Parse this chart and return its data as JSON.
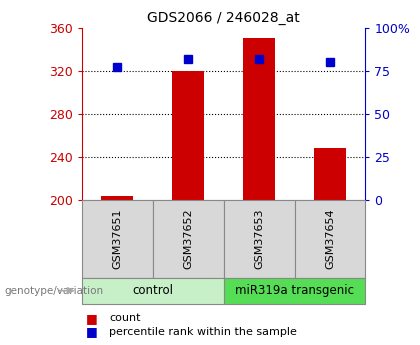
{
  "title": "GDS2066 / 246028_at",
  "samples": [
    "GSM37651",
    "GSM37652",
    "GSM37653",
    "GSM37654"
  ],
  "counts": [
    204,
    320,
    350,
    248
  ],
  "percentiles": [
    77,
    82,
    82,
    80
  ],
  "groups": [
    {
      "label": "control",
      "indices": [
        0,
        1
      ],
      "color": "#c8f0c8"
    },
    {
      "label": "miR319a transgenic",
      "indices": [
        2,
        3
      ],
      "color": "#55dd55"
    }
  ],
  "bar_color": "#cc0000",
  "pct_color": "#0000cc",
  "ylim_left": [
    200,
    360
  ],
  "ylim_right": [
    0,
    100
  ],
  "yticks_left": [
    200,
    240,
    280,
    320,
    360
  ],
  "yticks_right": [
    0,
    25,
    50,
    75,
    100
  ],
  "ytick_labels_right": [
    "0",
    "25",
    "50",
    "75",
    "100%"
  ],
  "grid_ticks": [
    240,
    280,
    320
  ],
  "sample_bg_color": "#d8d8d8",
  "bar_width": 0.45,
  "marker_size": 6,
  "label_count": "count",
  "label_pct": "percentile rank within the sample",
  "genotype_label": "genotype/variation"
}
